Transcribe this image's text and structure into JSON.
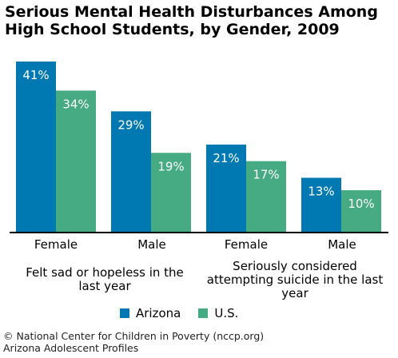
{
  "chart_data": {
    "type": "bar",
    "title": "Serious Mental Health Disturbances Among High School Students, by Gender, 2009",
    "categories": [
      "Female",
      "Male",
      "Female",
      "Male"
    ],
    "groups": [
      {
        "label": "Felt sad or hopeless in the last year",
        "categories": [
          "Female",
          "Male"
        ]
      },
      {
        "label": "Seriously considered attempting suicide in the last year",
        "categories": [
          "Female",
          "Male"
        ]
      }
    ],
    "series": [
      {
        "name": "Arizona",
        "color": "#0079b2",
        "values": [
          41,
          29,
          21,
          13
        ],
        "labels": [
          "41%",
          "29%",
          "21%",
          "13%"
        ]
      },
      {
        "name": "U.S.",
        "color": "#46ab82",
        "values": [
          34,
          19,
          17,
          10
        ],
        "labels": [
          "34%",
          "19%",
          "17%",
          "10%"
        ]
      }
    ],
    "ylim": [
      0,
      41
    ],
    "grid": false,
    "legend_position": "bottom"
  },
  "footer": {
    "line1": "© National Center for Children in Poverty (nccp.org)",
    "line2": "Arizona Adolescent Profiles"
  }
}
